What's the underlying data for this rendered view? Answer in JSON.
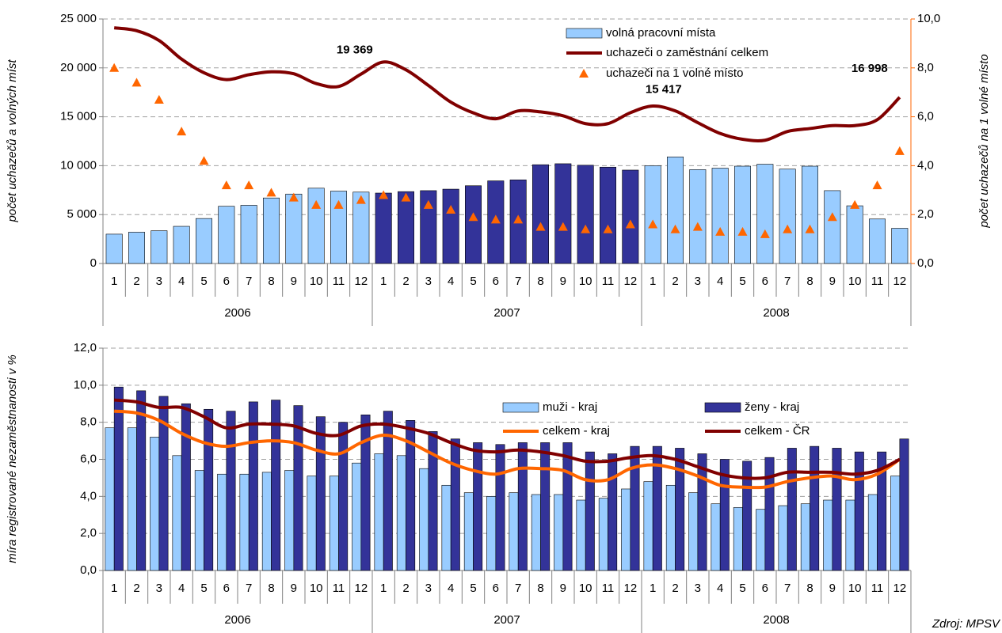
{
  "chart_data": [
    {
      "type": "combo",
      "ylabel": "počet uchazečů a volných míst",
      "y2label": "počet uchazečů na 1 volné místo",
      "categories": [
        "1",
        "2",
        "3",
        "4",
        "5",
        "6",
        "7",
        "8",
        "9",
        "10",
        "11",
        "12",
        "1",
        "2",
        "3",
        "4",
        "5",
        "6",
        "7",
        "8",
        "9",
        "10",
        "11",
        "12",
        "1",
        "2",
        "3",
        "4",
        "5",
        "6",
        "7",
        "8",
        "9",
        "10",
        "11",
        "12"
      ],
      "groups": [
        "2006",
        "2007",
        "2008"
      ],
      "ylim": [
        0,
        25000
      ],
      "yticks": [
        0,
        {
          "value": 5000,
          "label": "5 000"
        },
        {
          "value": 10000,
          "label": "10 000"
        },
        {
          "value": 15000,
          "label": "15 000"
        },
        {
          "value": 20000,
          "label": "20 000"
        },
        {
          "value": 25000,
          "label": "25 000"
        }
      ],
      "y2lim": [
        0,
        10
      ],
      "y2ticks": [
        {
          "value": 0,
          "label": "0,0"
        },
        {
          "value": 2,
          "label": "2,0"
        },
        {
          "value": 4,
          "label": "4,0"
        },
        {
          "value": 6,
          "label": "6,0"
        },
        {
          "value": 8,
          "label": "8,0"
        },
        {
          "value": 10,
          "label": "10,0"
        }
      ],
      "grid": true,
      "series": [
        {
          "name": "volná pracovní místa",
          "kind": "bar",
          "color": "#99ccff",
          "colors": [
            "#99ccff",
            "#99ccff",
            "#99ccff",
            "#99ccff",
            "#99ccff",
            "#99ccff",
            "#99ccff",
            "#99ccff",
            "#99ccff",
            "#99ccff",
            "#99ccff",
            "#99ccff",
            "#333399",
            "#333399",
            "#333399",
            "#333399",
            "#333399",
            "#333399",
            "#333399",
            "#333399",
            "#333399",
            "#333399",
            "#333399",
            "#333399",
            "#99ccff",
            "#99ccff",
            "#99ccff",
            "#99ccff",
            "#99ccff",
            "#99ccff",
            "#99ccff",
            "#99ccff",
            "#99ccff",
            "#99ccff",
            "#99ccff",
            "#99ccff"
          ],
          "values": [
            3000,
            3200,
            3350,
            3800,
            4600,
            5850,
            5950,
            6700,
            7100,
            7700,
            7400,
            7300,
            7200,
            7350,
            7450,
            7600,
            7950,
            8450,
            8550,
            10100,
            10200,
            10050,
            9850,
            9550,
            10000,
            10900,
            9600,
            9750,
            9950,
            10150,
            9650,
            9950,
            7450,
            5900,
            4550,
            3600
          ]
        },
        {
          "name": "uchazeči o zaměstnání celkem",
          "kind": "line",
          "color": "#800000",
          "values": [
            24100,
            23800,
            22800,
            20900,
            19500,
            18800,
            19300,
            19600,
            19400,
            18400,
            18100,
            19369,
            20600,
            19800,
            18200,
            16500,
            15400,
            14800,
            15600,
            15500,
            15100,
            14300,
            14300,
            15417,
            16100,
            15600,
            14400,
            13300,
            12700,
            12600,
            13500,
            13800,
            14100,
            14100,
            14700,
            16998
          ],
          "value_labels": [
            null,
            null,
            null,
            null,
            null,
            null,
            null,
            null,
            null,
            null,
            null,
            "19 369",
            null,
            null,
            null,
            null,
            null,
            null,
            null,
            null,
            null,
            null,
            null,
            "15 417",
            null,
            null,
            null,
            null,
            null,
            null,
            null,
            null,
            null,
            null,
            null,
            "16 998"
          ]
        },
        {
          "name": "uchazeči na 1 volné místo",
          "kind": "scatter",
          "color": "#ff6600",
          "axis": "y2",
          "values": [
            8.0,
            7.4,
            6.7,
            5.4,
            4.2,
            3.2,
            3.2,
            2.9,
            2.7,
            2.4,
            2.4,
            2.6,
            2.8,
            2.7,
            2.4,
            2.2,
            1.9,
            1.8,
            1.8,
            1.5,
            1.5,
            1.4,
            1.4,
            1.6,
            1.6,
            1.4,
            1.5,
            1.3,
            1.3,
            1.2,
            1.4,
            1.4,
            1.9,
            2.4,
            3.2,
            4.6
          ]
        }
      ]
    },
    {
      "type": "combo",
      "ylabel": "míra registrované nezaměstnanosti v %",
      "categories": [
        "1",
        "2",
        "3",
        "4",
        "5",
        "6",
        "7",
        "8",
        "9",
        "10",
        "11",
        "12",
        "1",
        "2",
        "3",
        "4",
        "5",
        "6",
        "7",
        "8",
        "9",
        "10",
        "11",
        "12",
        "1",
        "2",
        "3",
        "4",
        "5",
        "6",
        "7",
        "8",
        "9",
        "10",
        "11",
        "12"
      ],
      "groups": [
        "2006",
        "2007",
        "2008"
      ],
      "ylim": [
        0,
        12
      ],
      "yticks": [
        {
          "value": 0,
          "label": "0,0"
        },
        {
          "value": 2,
          "label": "2,0"
        },
        {
          "value": 4,
          "label": "4,0"
        },
        {
          "value": 6,
          "label": "6,0"
        },
        {
          "value": 8,
          "label": "8,0"
        },
        {
          "value": 10,
          "label": "10,0"
        },
        {
          "value": 12,
          "label": "12,0"
        }
      ],
      "grid": true,
      "series": [
        {
          "name": "muži - kraj",
          "kind": "bar",
          "color": "#99ccff",
          "values": [
            7.7,
            7.7,
            7.2,
            6.2,
            5.4,
            5.2,
            5.2,
            5.3,
            5.4,
            5.1,
            5.1,
            5.8,
            6.3,
            6.2,
            5.5,
            4.6,
            4.2,
            4.0,
            4.2,
            4.1,
            4.1,
            3.8,
            3.9,
            4.4,
            4.8,
            4.6,
            4.2,
            3.6,
            3.4,
            3.3,
            3.5,
            3.6,
            3.8,
            3.8,
            4.1,
            5.1
          ]
        },
        {
          "name": "ženy - kraj",
          "kind": "bar",
          "color": "#333399",
          "values": [
            9.9,
            9.7,
            9.4,
            9.0,
            8.7,
            8.6,
            9.1,
            9.2,
            8.9,
            8.3,
            8.0,
            8.4,
            8.6,
            8.1,
            7.5,
            7.1,
            6.9,
            6.8,
            6.9,
            6.9,
            6.9,
            6.4,
            6.3,
            6.7,
            6.7,
            6.6,
            6.3,
            6.0,
            5.9,
            6.1,
            6.6,
            6.7,
            6.6,
            6.4,
            6.4,
            7.1
          ]
        },
        {
          "name": "celkem - kraj",
          "kind": "line",
          "color": "#ff6600",
          "values": [
            8.6,
            8.5,
            8.1,
            7.4,
            6.9,
            6.7,
            6.9,
            7.0,
            6.9,
            6.5,
            6.3,
            6.9,
            7.3,
            7.0,
            6.4,
            5.8,
            5.4,
            5.2,
            5.5,
            5.5,
            5.4,
            4.9,
            4.9,
            5.5,
            5.7,
            5.5,
            5.1,
            4.6,
            4.5,
            4.5,
            4.8,
            5.0,
            5.1,
            4.9,
            5.2,
            6.0
          ]
        },
        {
          "name": "celkem - ČR",
          "kind": "line",
          "color": "#800000",
          "values": [
            9.2,
            9.1,
            8.8,
            8.8,
            8.3,
            7.7,
            7.9,
            7.9,
            7.8,
            7.4,
            7.3,
            7.8,
            7.9,
            7.7,
            7.4,
            6.9,
            6.5,
            6.4,
            6.5,
            6.4,
            6.2,
            5.9,
            5.9,
            6.1,
            6.2,
            6.0,
            5.6,
            5.2,
            5.0,
            5.0,
            5.3,
            5.3,
            5.3,
            5.2,
            5.4,
            6.0
          ]
        }
      ]
    }
  ],
  "source": "Zdroj: MPSV"
}
